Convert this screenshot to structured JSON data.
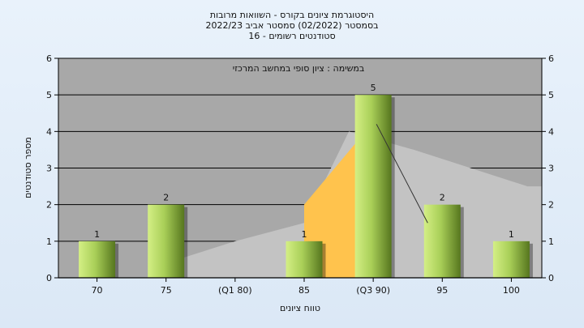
{
  "chart_data": {
    "type": "bar",
    "title_lines": [
      "היסטוגרמת ציונים בקורס - השוואות מרובות",
      "בסמסטר  (02/2022)  סמסטר אביב 2022/23",
      "סטודנטים רשומים - 16"
    ],
    "annotation": "במשימה : ציון סופי במחשב המרכזי",
    "xlabel": "טווח ציונים",
    "ylabel": "מספר סטודנטים",
    "categories": [
      "70",
      "75",
      "(Q1 80)",
      "85",
      "(Q3 90)",
      "95",
      "100"
    ],
    "values": [
      1,
      2,
      0,
      1,
      5,
      2,
      1
    ],
    "data_labels": [
      "1",
      "2",
      "",
      "1",
      "5",
      "2",
      "1"
    ],
    "ylim": [
      0,
      6
    ],
    "yticks": [
      "0",
      "1",
      "2",
      "3",
      "4",
      "5",
      "6"
    ],
    "grid": true,
    "colors": {
      "plot_bg": "#a8a8a8",
      "area_light": "#c3c3c3",
      "area_orange": "#ffc34d",
      "bar_light": "#c8e67a",
      "bar_dark": "#5c7d22",
      "median_line": "#333333"
    }
  }
}
